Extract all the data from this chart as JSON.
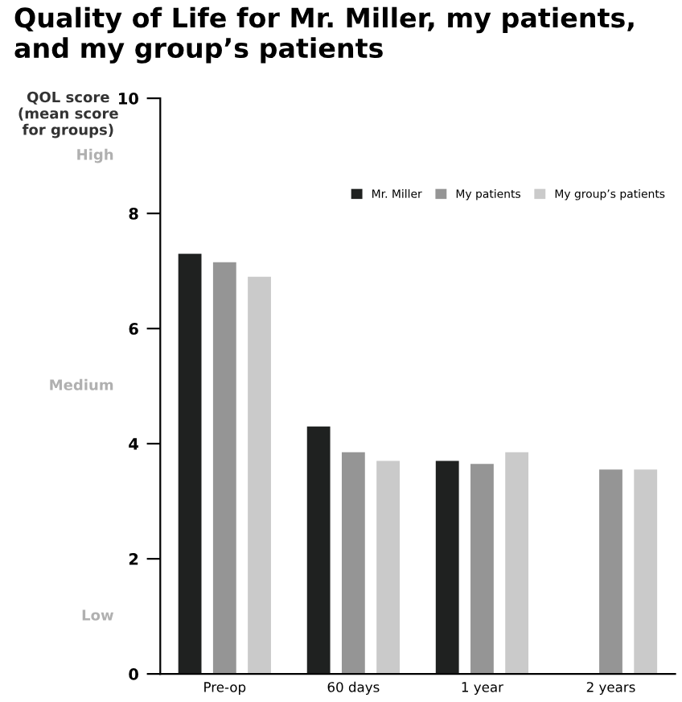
{
  "chart_data": {
    "type": "bar",
    "title": "Quality of Life for Mr. Miller, my patients, and my group’s patients",
    "ylabel": "QOL score\n(mean score\nfor groups)",
    "categories": [
      "Pre-op",
      "60 days",
      "1 year",
      "2 years"
    ],
    "series": [
      {
        "name": "Mr. Miller",
        "color": "#1f2120",
        "values": [
          7.3,
          4.3,
          3.7,
          null
        ]
      },
      {
        "name": "My patients",
        "color": "#959595",
        "values": [
          7.15,
          3.85,
          3.65,
          3.55
        ]
      },
      {
        "name": "My group’s patients",
        "color": "#cacaca",
        "values": [
          6.9,
          3.7,
          3.85,
          3.55
        ]
      }
    ],
    "annotations": [
      "High",
      "Medium",
      "Low"
    ],
    "ylim": [
      0,
      10
    ],
    "yticks": [
      0,
      2,
      4,
      6,
      8,
      10
    ],
    "grid": false,
    "legend": "top right"
  }
}
